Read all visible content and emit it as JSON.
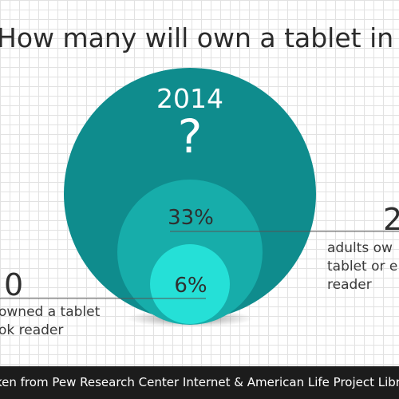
{
  "title": "How many will own a tablet in",
  "chart_data": {
    "type": "bubble",
    "title": "How many will own a tablet in",
    "circles": [
      {
        "label": "2014",
        "value_text": "?",
        "color": "#0f8c8d"
      },
      {
        "label": "33%",
        "value": 33,
        "color": "#17adaa"
      },
      {
        "label": "6%",
        "value": 6,
        "color": "#25e0d7"
      }
    ],
    "callouts": [
      {
        "number": "2",
        "lines": [
          "adults ow",
          "tablet or e",
          "reader"
        ]
      },
      {
        "number": "0",
        "lines": [
          "owned a tablet",
          "ok reader"
        ]
      }
    ]
  },
  "footer": "ken from Pew Research Center Internet & American Life Project Library"
}
